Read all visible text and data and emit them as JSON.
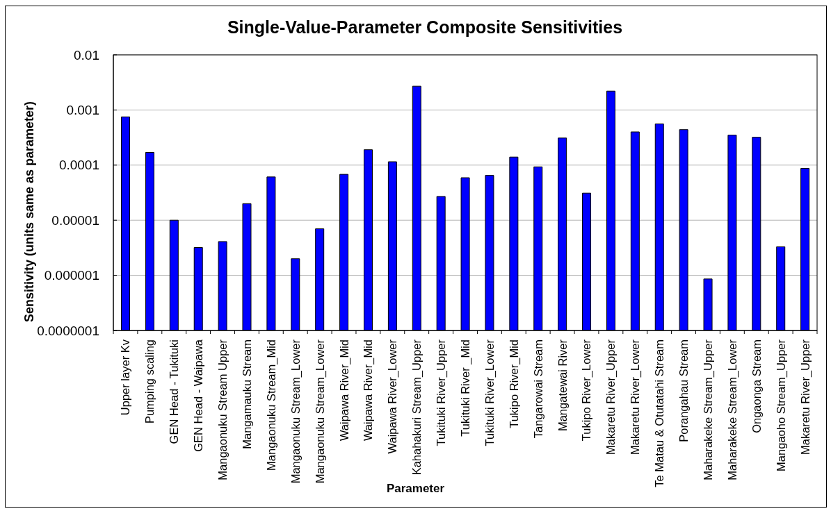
{
  "chart_data": {
    "type": "bar",
    "title": "Single-Value-Parameter Composite Sensitivities",
    "xlabel": "Parameter",
    "ylabel": "Sensitivity (units same as parameter)",
    "categories": [
      "Upper layer Kv",
      "Pumping scaling",
      "GEN Head - Tukituki",
      "GEN Head - Waipawa",
      "Mangaonuku Stream Upper",
      "Mangamauku Stream",
      "Mangaonuku Stream_Mid",
      "Mangaonuku Stream_Lower",
      "Mangaonuku Stream_Lower",
      "Waipawa River_Mid",
      "Waipawa River_Mid",
      "Waipawa River_Lower",
      "Kahahakuri Stream_Upper",
      "Tukituki River_Upper",
      "Tukituki River _Mid",
      "Tukituki River_Lower",
      "Tukipo River_Mid",
      "Tangarowai Stream",
      "Mangatewai River",
      "Tukipo River_Lower",
      "Makaretu River_Upper",
      "Makaretu River_Lower",
      "Te Matau & Otutatahi Stream",
      "Porangahau Stream",
      "Maharakeke Stream_Upper",
      "Maharakeke Stream_Lower",
      "Ongaonga Stream",
      "Mangaoho Stream_Upper",
      "Makaretu River_Upper"
    ],
    "values": [
      0.00075,
      0.00017,
      1e-05,
      3.2e-06,
      4.1e-06,
      2e-05,
      6.1e-05,
      2e-06,
      7e-06,
      6.8e-05,
      0.00019,
      0.000115,
      0.0027,
      2.7e-05,
      5.9e-05,
      6.5e-05,
      0.00014,
      9.3e-05,
      0.00031,
      3.1e-05,
      0.0022,
      0.0004,
      0.00056,
      0.00044,
      8.6e-07,
      0.00035,
      0.00032,
      3.3e-06,
      8.7e-05
    ],
    "color": "#0000ff",
    "log": true,
    "ylim": [
      1e-07,
      0.01
    ],
    "yticks": [
      {
        "value": 1e-07,
        "label": "0.0000001"
      },
      {
        "value": 1e-06,
        "label": "0.000001"
      },
      {
        "value": 1e-05,
        "label": "0.00001"
      },
      0.0001,
      0.001,
      0.01
    ],
    "grid": "y"
  }
}
